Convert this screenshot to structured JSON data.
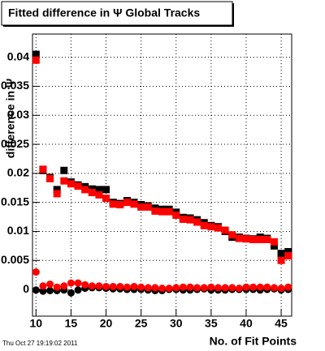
{
  "chart_data": {
    "type": "scatter",
    "title": "Fitted difference in Ψ   Global Tracks",
    "xlabel": "No. of Fit Points",
    "ylabel": "difference in Ψ",
    "footer": "Thu Oct 27 19:19:02 2011",
    "x": [
      10,
      11,
      12,
      13,
      14,
      15,
      16,
      17,
      18,
      19,
      20,
      21,
      22,
      23,
      24,
      25,
      26,
      27,
      28,
      29,
      30,
      31,
      32,
      33,
      34,
      35,
      36,
      37,
      38,
      39,
      40,
      41,
      42,
      43,
      44,
      45,
      46
    ],
    "series": [
      {
        "color": "#000000",
        "marker": "square",
        "values": [
          0.0405,
          0.0205,
          0.0193,
          0.0172,
          0.0205,
          0.0185,
          0.018,
          0.0177,
          0.0173,
          0.0172,
          0.0172,
          0.015,
          0.0148,
          0.0153,
          0.015,
          0.0146,
          0.0144,
          0.014,
          0.0138,
          0.0138,
          0.0133,
          0.0124,
          0.0123,
          0.012,
          0.0115,
          0.011,
          0.0108,
          0.01,
          0.009,
          0.009,
          0.0088,
          0.0087,
          0.009,
          0.0088,
          0.0075,
          0.0062,
          0.0065
        ]
      },
      {
        "color": "#ff0000",
        "marker": "square",
        "values": [
          0.0395,
          0.0207,
          0.0191,
          0.0165,
          0.0187,
          0.0182,
          0.0178,
          0.0172,
          0.0167,
          0.0163,
          0.0157,
          0.0147,
          0.0146,
          0.015,
          0.0147,
          0.0142,
          0.0142,
          0.0135,
          0.0134,
          0.0134,
          0.0128,
          0.0121,
          0.012,
          0.0116,
          0.011,
          0.0108,
          0.0106,
          0.0102,
          0.0094,
          0.0088,
          0.0087,
          0.0086,
          0.0086,
          0.0086,
          0.0082,
          0.005,
          0.0058
        ]
      },
      {
        "color": "#000000",
        "marker": "circle",
        "values": [
          -0.0001,
          -0.0003,
          -0.0002,
          -0.0002,
          -0.0001,
          -0.0006,
          -0.0001,
          0.0002,
          0.0003,
          0.0003,
          0.0002,
          0.0001,
          0.0001,
          0,
          0,
          0,
          -0.0001,
          -0.0002,
          -0.0002,
          0,
          0,
          -0.0001,
          -0.0001,
          0,
          0.0001,
          -0.0001,
          -0.0001,
          -0.0001,
          0,
          0,
          0,
          0,
          -0.0001,
          0,
          0.0001,
          -0.0001,
          0
        ]
      },
      {
        "color": "#ff0000",
        "marker": "circle",
        "values": [
          0.003,
          0.0006,
          0.0009,
          0.0004,
          0.0006,
          0.0011,
          0.0011,
          0.0008,
          0.0006,
          0.0006,
          0.0005,
          0.0005,
          0.0005,
          0.0004,
          0.0005,
          0.0004,
          0.0003,
          0.0003,
          0.0002,
          0.0002,
          0.0003,
          0.0004,
          0.0004,
          0.0003,
          0.0003,
          0.0004,
          0.0003,
          0.0003,
          0.0003,
          0.0002,
          0.0004,
          0.0004,
          0.0004,
          0.0004,
          0.0003,
          0.0002,
          0.0004
        ]
      }
    ],
    "xlim": [
      9.5,
      46.5
    ],
    "xticks": [
      10,
      15,
      20,
      25,
      30,
      35,
      40,
      45
    ],
    "ylim": [
      -0.0046,
      0.044
    ],
    "yticks": [
      0,
      0.005,
      0.01,
      0.015,
      0.02,
      0.025,
      0.03,
      0.035,
      0.04
    ],
    "grid": true
  }
}
